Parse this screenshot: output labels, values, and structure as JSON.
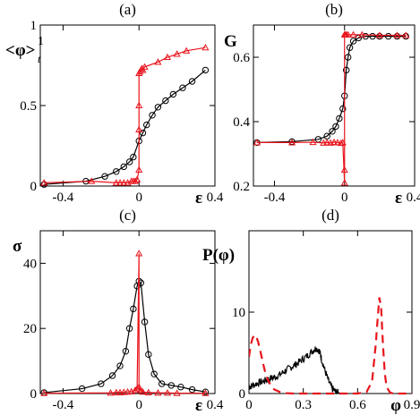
{
  "colors": {
    "black": "#000000",
    "red": "#e8141c"
  },
  "chart_data": [
    {
      "panel": "(a)",
      "type": "line",
      "title": "(a)",
      "ylabel": "<φ>",
      "ylabel_sub": "t",
      "ylabel_sup": "1",
      "xlabel": "ε",
      "xlim": [
        -0.52,
        0.4
      ],
      "ylim": [
        0,
        1.0
      ],
      "xticks": [
        {
          "v": -0.4,
          "label": "-0.4"
        },
        {
          "v": 0,
          "label": "0"
        },
        {
          "v": 0.4,
          "label": "0.4"
        }
      ],
      "yticks": [
        {
          "v": 0,
          "label": "0"
        },
        {
          "v": 0.5,
          "label": "0.5"
        },
        {
          "v": 1.0,
          "label": "1"
        }
      ],
      "series": [
        {
          "color": "black",
          "marker": "circle",
          "x": [
            -0.5,
            -0.28,
            -0.18,
            -0.12,
            -0.08,
            -0.05,
            -0.03,
            0.0,
            0.02,
            0.04,
            0.07,
            0.1,
            0.14,
            0.18,
            0.23,
            0.28,
            0.35
          ],
          "y": [
            0.01,
            0.03,
            0.06,
            0.09,
            0.12,
            0.15,
            0.18,
            0.28,
            0.33,
            0.38,
            0.44,
            0.49,
            0.53,
            0.57,
            0.61,
            0.65,
            0.72
          ]
        },
        {
          "color": "red",
          "marker": "triangle",
          "x": [
            -0.5,
            -0.25,
            -0.12,
            -0.1,
            -0.08,
            -0.06,
            -0.04,
            -0.03,
            -0.02,
            -0.01,
            0.0,
            0.0,
            0.0,
            0.0,
            0.005,
            0.01,
            0.015,
            0.02,
            0.03,
            0.1,
            0.15,
            0.2,
            0.25,
            0.35
          ],
          "y": [
            0.02,
            0.03,
            0.02,
            0.02,
            0.02,
            0.02,
            0.03,
            0.03,
            0.03,
            0.04,
            0.1,
            0.35,
            0.5,
            0.7,
            0.71,
            0.72,
            0.73,
            0.72,
            0.74,
            0.77,
            0.8,
            0.82,
            0.84,
            0.86
          ]
        }
      ]
    },
    {
      "panel": "(b)",
      "type": "line",
      "title": "(b)",
      "ylabel": "G",
      "xlabel": "ε",
      "xlim": [
        -0.52,
        0.4
      ],
      "ylim": [
        0.2,
        0.7
      ],
      "xticks": [
        {
          "v": -0.4,
          "label": "-0.4"
        },
        {
          "v": 0,
          "label": "0"
        },
        {
          "v": 0.4,
          "label": "0.4"
        }
      ],
      "yticks": [
        {
          "v": 0.2,
          "label": "0.2"
        },
        {
          "v": 0.4,
          "label": "0.4"
        },
        {
          "v": 0.6,
          "label": "0.6"
        }
      ],
      "series": [
        {
          "color": "black",
          "marker": "circle",
          "x": [
            -0.5,
            -0.3,
            -0.15,
            -0.1,
            -0.07,
            -0.05,
            -0.03,
            -0.01,
            0.0,
            0.01,
            0.02,
            0.03,
            0.05,
            0.08,
            0.12,
            0.16,
            0.2,
            0.25,
            0.3,
            0.35
          ],
          "y": [
            0.335,
            0.338,
            0.345,
            0.355,
            0.37,
            0.385,
            0.41,
            0.44,
            0.48,
            0.56,
            0.6,
            0.63,
            0.65,
            0.66,
            0.665,
            0.665,
            0.665,
            0.665,
            0.665,
            0.665
          ]
        },
        {
          "color": "red",
          "marker": "triangle",
          "x": [
            -0.5,
            -0.3,
            -0.18,
            -0.12,
            -0.1,
            -0.08,
            -0.06,
            -0.04,
            -0.02,
            -0.01,
            0.0,
            0.0,
            0.0,
            0.005,
            0.01,
            0.02,
            0.05,
            0.1,
            0.2,
            0.3,
            0.35
          ],
          "y": [
            0.335,
            0.335,
            0.336,
            0.334,
            0.335,
            0.334,
            0.336,
            0.335,
            0.333,
            0.335,
            0.21,
            0.25,
            0.67,
            0.67,
            0.67,
            0.67,
            0.67,
            0.67,
            0.668,
            0.668,
            0.668
          ]
        }
      ]
    },
    {
      "panel": "(c)",
      "type": "line",
      "title": "(c)",
      "ylabel": "σ",
      "xlabel": "ε",
      "xlim": [
        -0.52,
        0.4
      ],
      "ylim": [
        0,
        50
      ],
      "xticks": [
        {
          "v": -0.4,
          "label": "-0.4"
        },
        {
          "v": 0,
          "label": "0"
        },
        {
          "v": 0.4,
          "label": "0.4"
        }
      ],
      "yticks": [
        {
          "v": 0,
          "label": "0"
        },
        {
          "v": 20,
          "label": "20"
        },
        {
          "v": 40,
          "label": "40"
        }
      ],
      "series": [
        {
          "color": "black",
          "marker": "circle",
          "x": [
            -0.5,
            -0.3,
            -0.2,
            -0.14,
            -0.1,
            -0.07,
            -0.05,
            -0.03,
            -0.01,
            0.0,
            0.01,
            0.03,
            0.05,
            0.08,
            0.12,
            0.17,
            0.22,
            0.28,
            0.35
          ],
          "y": [
            0.3,
            1.5,
            3.0,
            5.5,
            8.5,
            13,
            20,
            26,
            33,
            34.5,
            34,
            22,
            12,
            6,
            3,
            2.5,
            2,
            1.2,
            0.5
          ]
        },
        {
          "color": "red",
          "marker": "triangle",
          "x": [
            -0.5,
            -0.15,
            -0.12,
            -0.1,
            -0.08,
            -0.06,
            -0.04,
            -0.02,
            -0.01,
            0.0,
            0.0,
            0.01,
            0.02,
            0.05,
            0.1,
            0.15,
            0.2,
            0.35
          ],
          "y": [
            0.1,
            0.2,
            0.3,
            0.3,
            0.4,
            0.5,
            0.6,
            1.0,
            1.5,
            43,
            2.0,
            1.0,
            0.5,
            0.3,
            0.2,
            0.2,
            0.1,
            0.1
          ]
        }
      ]
    },
    {
      "panel": "(d)",
      "type": "line",
      "title": "(d)",
      "ylabel": "P(φ)",
      "xlabel": "φ",
      "xlim": [
        0,
        0.9
      ],
      "ylim": [
        0,
        20
      ],
      "xticks": [
        {
          "v": 0,
          "label": "0"
        },
        {
          "v": 0.3,
          "label": "0.3"
        },
        {
          "v": 0.6,
          "label": "0.6"
        },
        {
          "v": 0.9,
          "label": "0.9"
        }
      ],
      "yticks": [
        {
          "v": 0,
          "label": "0"
        },
        {
          "v": 10,
          "label": "10"
        }
      ],
      "series": [
        {
          "color": "black",
          "style": "noisy",
          "x": [
            0.0,
            0.02,
            0.05,
            0.08,
            0.11,
            0.14,
            0.17,
            0.2,
            0.23,
            0.26,
            0.29,
            0.32,
            0.35,
            0.37,
            0.39,
            0.4,
            0.42,
            0.44,
            0.46,
            0.48,
            0.5,
            0.52
          ],
          "y": [
            0.8,
            1.0,
            1.3,
            1.5,
            1.8,
            2.0,
            2.3,
            2.8,
            3.2,
            3.6,
            4.1,
            4.6,
            5.2,
            5.6,
            5.2,
            4.3,
            2.8,
            1.5,
            0.6,
            0.2,
            0.05,
            0.0
          ]
        },
        {
          "color": "red",
          "style": "dashed",
          "x": [
            0.0,
            0.01,
            0.02,
            0.03,
            0.04,
            0.05,
            0.06,
            0.07,
            0.08,
            0.09,
            0.1,
            0.12,
            0.14,
            0.17,
            0.2,
            0.25,
            0.3,
            0.4,
            0.5,
            0.6,
            0.65,
            0.68,
            0.7,
            0.71,
            0.72,
            0.73,
            0.74,
            0.75,
            0.76,
            0.78,
            0.8,
            0.85,
            0.9
          ],
          "y": [
            4.5,
            6.0,
            6.8,
            7.2,
            7.0,
            6.4,
            5.5,
            4.5,
            3.5,
            2.6,
            1.9,
            1.0,
            0.5,
            0.2,
            0.05,
            0.0,
            0.0,
            0.0,
            0.0,
            0.0,
            0.2,
            1.5,
            6.0,
            9.0,
            11.8,
            10.5,
            6.0,
            2.5,
            0.8,
            0.1,
            0.0,
            0.0,
            0.0
          ]
        }
      ]
    }
  ]
}
